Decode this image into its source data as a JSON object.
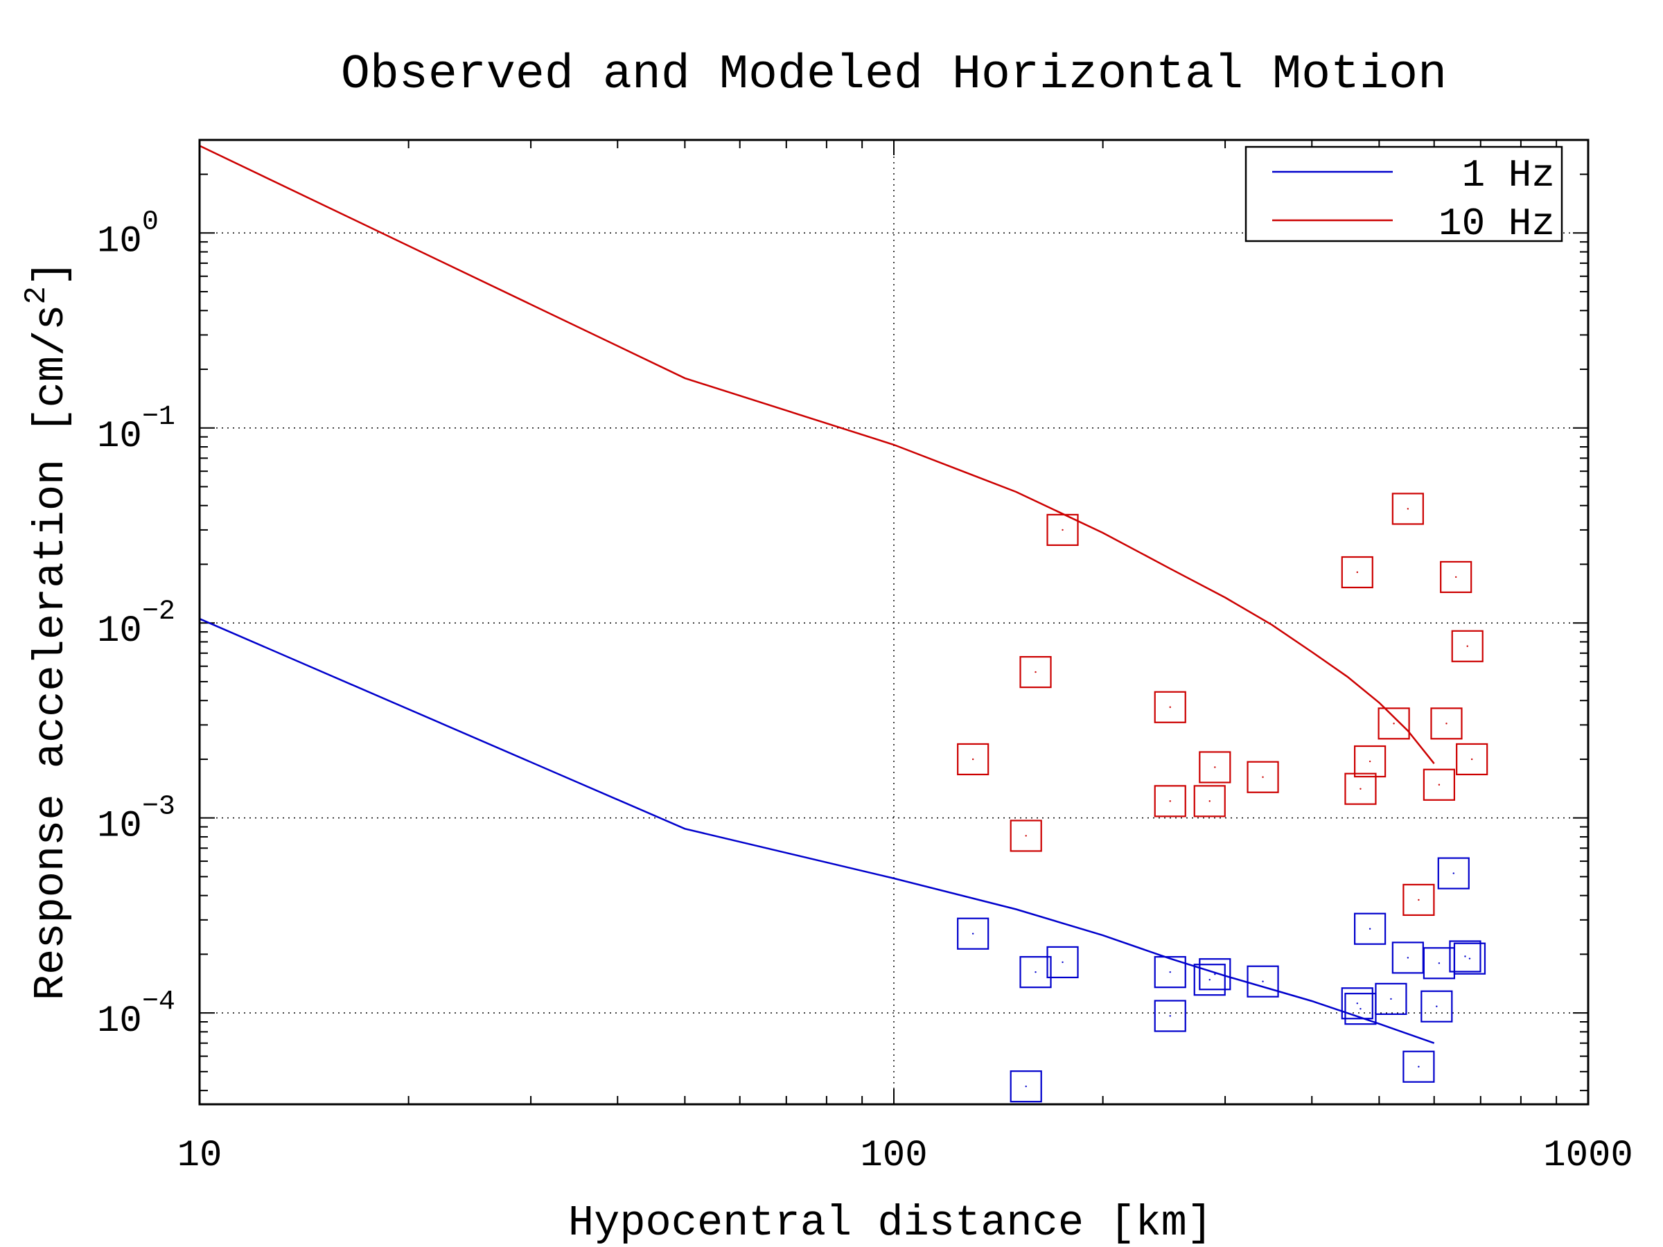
{
  "chart_data": {
    "type": "scatter",
    "title": "Observed and Modeled Horizontal Motion",
    "xlabel": "Hypocentral distance [km]",
    "ylabel_main": "Response acceleration [cm/s",
    "ylabel_sup": "2",
    "ylabel_end": "]",
    "xscale": "log",
    "yscale": "log",
    "xlim": [
      10,
      1000
    ],
    "ylim": [
      3.4e-05,
      3.0
    ],
    "grid": true,
    "legend_position": "top-right",
    "x_ticks": [
      {
        "value": 10,
        "label": "10"
      },
      {
        "value": 100,
        "label": "100"
      },
      {
        "value": 1000,
        "label": "1000"
      }
    ],
    "y_ticks": [
      {
        "value": 1,
        "base": "10",
        "exp": "0"
      },
      {
        "value": 0.1,
        "base": "10",
        "exp": "−1"
      },
      {
        "value": 0.01,
        "base": "10",
        "exp": "−2"
      },
      {
        "value": 0.001,
        "base": "10",
        "exp": "−3"
      },
      {
        "value": 0.0001,
        "base": "10",
        "exp": "−4"
      }
    ],
    "lines": [
      {
        "name": "1 Hz",
        "color": "#0000cc",
        "x": [
          10,
          50,
          100,
          150,
          200,
          250,
          300,
          400,
          500,
          600
        ],
        "y": [
          0.0105,
          0.00088,
          0.00049,
          0.00034,
          0.00025,
          0.00019,
          0.000155,
          0.000115,
          8.8e-05,
          7e-05
        ]
      },
      {
        "name": "10 Hz",
        "color": "#cc0000",
        "x": [
          10,
          50,
          100,
          150,
          200,
          250,
          300,
          350,
          400,
          450,
          500,
          550,
          600
        ],
        "y": [
          2.8,
          0.18,
          0.082,
          0.047,
          0.029,
          0.019,
          0.0135,
          0.0098,
          0.0071,
          0.0053,
          0.0039,
          0.0028,
          0.0019
        ]
      }
    ],
    "markers": [
      {
        "series": "10 Hz observed",
        "color": "#cc0000",
        "points": [
          [
            130,
            0.002
          ],
          [
            155,
            0.00081
          ],
          [
            160,
            0.0056
          ],
          [
            175,
            0.03
          ],
          [
            250,
            0.0037
          ],
          [
            250,
            0.00122
          ],
          [
            285,
            0.00122
          ],
          [
            290,
            0.00182
          ],
          [
            340,
            0.00162
          ],
          [
            465,
            0.0182
          ],
          [
            470,
            0.00141
          ],
          [
            485,
            0.00195
          ],
          [
            525,
            0.00305
          ],
          [
            550,
            0.0385
          ],
          [
            570,
            0.00038
          ],
          [
            610,
            0.00148
          ],
          [
            625,
            0.00305
          ],
          [
            645,
            0.0172
          ],
          [
            670,
            0.0076
          ],
          [
            680,
            0.002
          ]
        ]
      },
      {
        "series": "1 Hz observed",
        "color": "#0000cc",
        "points": [
          [
            130,
            0.000255
          ],
          [
            155,
            4.2e-05
          ],
          [
            160,
            0.000162
          ],
          [
            175,
            0.000182
          ],
          [
            250,
            0.000162
          ],
          [
            250,
            9.65e-05
          ],
          [
            285,
            0.000148
          ],
          [
            290,
            0.000158
          ],
          [
            340,
            0.000145
          ],
          [
            465,
            0.000112
          ],
          [
            470,
            0.000105
          ],
          [
            485,
            0.00027
          ],
          [
            520,
            0.000118
          ],
          [
            550,
            0.000192
          ],
          [
            570,
            5.3e-05
          ],
          [
            605,
            0.000108
          ],
          [
            610,
            0.00018
          ],
          [
            640,
            0.00052
          ],
          [
            665,
            0.000195
          ],
          [
            675,
            0.00019
          ]
        ]
      }
    ],
    "legend": [
      {
        "label": "1 Hz",
        "color": "#0000cc"
      },
      {
        "label": "10 Hz",
        "color": "#cc0000"
      }
    ]
  }
}
